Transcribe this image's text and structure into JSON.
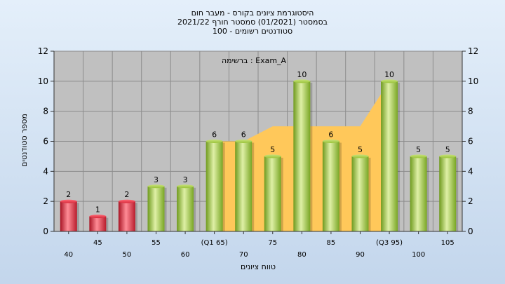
{
  "chart_data": {
    "type": "bar",
    "title_lines": [
      "היסטוגרמת ציונים בקורס - מעבר חום",
      "בסמסטר  (01/2021)  סמסטר חורף 2021/22",
      "סטודנטים רשומים - 100"
    ],
    "legend_text": "ברשימה : Exam_A",
    "ylabel": "מספר סטודנטים",
    "xlabel": "טווח ציונים",
    "ylim": [
      0,
      12
    ],
    "y_ticks": [
      0,
      2,
      4,
      6,
      8,
      10,
      12
    ],
    "grid": true,
    "categories": [
      "40",
      "45",
      "50",
      "55",
      "60",
      "(Q1 65)",
      "70",
      "75",
      "80",
      "85",
      "90",
      "(Q3 95)",
      "100",
      "105"
    ],
    "values": [
      2,
      1,
      2,
      3,
      3,
      6,
      6,
      5,
      10,
      6,
      5,
      10,
      5,
      5
    ],
    "data_labels": [
      "2",
      "1",
      "2",
      "3",
      "3",
      "6",
      "6",
      "5",
      "10",
      "6",
      "5",
      "10",
      "5",
      "5"
    ],
    "bar_colors": [
      "red",
      "red",
      "red",
      "green",
      "green",
      "green",
      "green",
      "green",
      "green",
      "green",
      "green",
      "green",
      "green",
      "green"
    ],
    "band": {
      "from_category": "(Q1 65)",
      "to_category": "(Q3 95)",
      "upper_values": [
        6,
        6,
        7,
        7,
        7,
        7,
        10
      ]
    },
    "colors": {
      "plot_background": "#c0c0c0",
      "band": "#ffc85a",
      "green_bar": "#9ccc3c",
      "red_bar": "#dd2c3c",
      "gridline": "#8c8c8c"
    }
  }
}
